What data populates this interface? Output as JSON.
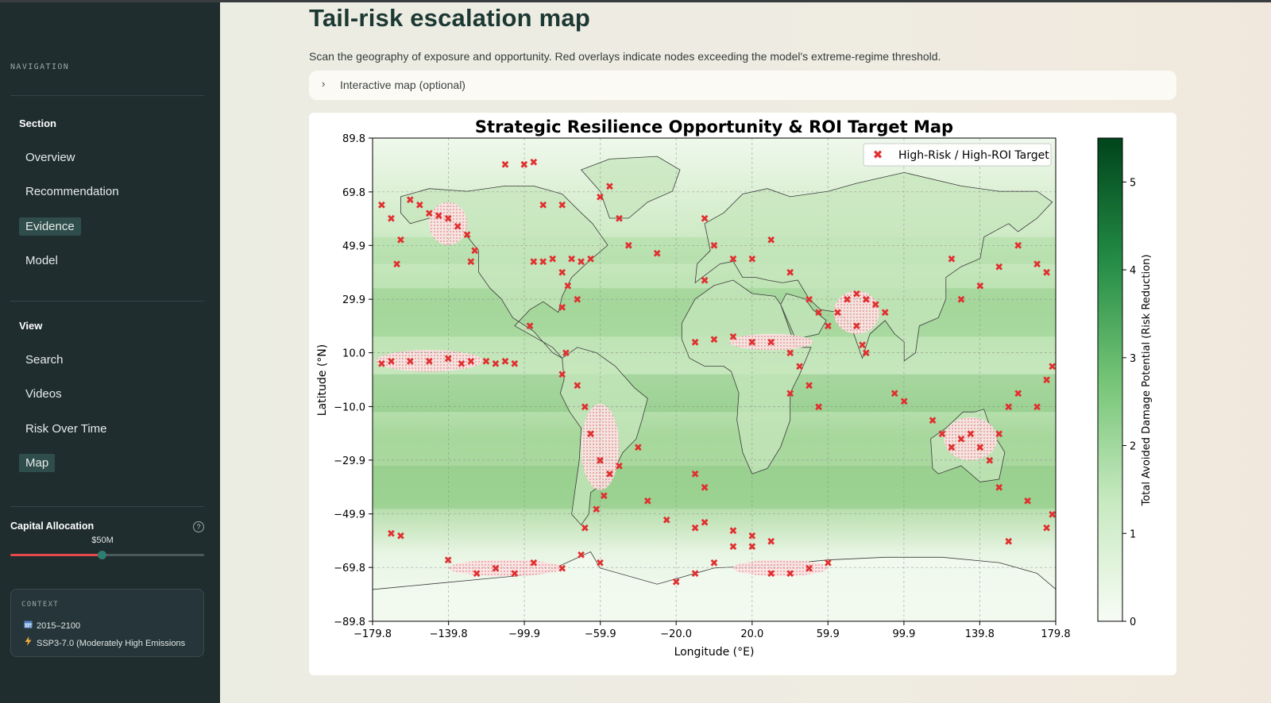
{
  "sidebar": {
    "nav_caption": "NAVIGATION",
    "section_title": "Section",
    "section_items": [
      {
        "label": "Overview",
        "active": false
      },
      {
        "label": "Recommendation",
        "active": false
      },
      {
        "label": "Evidence",
        "active": true
      },
      {
        "label": "Model",
        "active": false
      }
    ],
    "view_title": "View",
    "view_items": [
      {
        "label": "Search",
        "active": false
      },
      {
        "label": "Videos",
        "active": false
      },
      {
        "label": "Risk Over Time",
        "active": false
      },
      {
        "label": "Map",
        "active": true
      }
    ],
    "capital": {
      "title": "Capital Allocation",
      "value_label": "$50M",
      "slider_fraction": 0.47
    },
    "context": {
      "caption": "CONTEXT",
      "period": "2015–2100",
      "scenario": "SSP3-7.0 (Moderately High Emissions"
    }
  },
  "main": {
    "title": "Tail-risk escalation map",
    "description": "Scan the geography of exposure and opportunity. Red overlays indicate nodes exceeding the model's extreme-regime threshold.",
    "expander_label": "Interactive map (optional)"
  },
  "colors": {
    "sidebar_bg": "#1f2d2f",
    "accent_green": "#2f4d4b",
    "slider_red": "#e5484d",
    "marker_red": "#d62728",
    "map_dark": "#00441b",
    "map_light": "#f7fcf5"
  },
  "chart_data": {
    "type": "scatter",
    "title": "Strategic Resilience Opportunity & ROI Target Map",
    "xlabel": "Longitude (°E)",
    "ylabel": "Latitude (°N)",
    "xlim": [
      -179.8,
      179.8
    ],
    "ylim": [
      -89.8,
      89.8
    ],
    "xticks": [
      "−179.8",
      "−139.8",
      "−99.9",
      "−59.9",
      "−20.0",
      "20.0",
      "59.9",
      "99.9",
      "139.8",
      "179.8"
    ],
    "yticks": [
      "89.8",
      "69.8",
      "49.9",
      "29.9",
      "10.0",
      "−10.0",
      "−29.9",
      "−49.9",
      "−69.8",
      "−89.8"
    ],
    "grid": true,
    "legend": {
      "label": "High-Risk / High-ROI Target",
      "placement": "top-right"
    },
    "colorbar": {
      "label": "Total Avoided Damage Potential (Risk Reduction)",
      "ticks": [
        "0",
        "1",
        "2",
        "3",
        "4",
        "5"
      ],
      "max": 5.5,
      "colormap": "Greens"
    },
    "series": [
      {
        "name": "High-Risk / High-ROI Target",
        "points": [
          [
            -175,
            65
          ],
          [
            -170,
            60
          ],
          [
            -165,
            52
          ],
          [
            -167,
            43
          ],
          [
            -160,
            67
          ],
          [
            -155,
            65
          ],
          [
            -150,
            62
          ],
          [
            -145,
            61
          ],
          [
            -140,
            60
          ],
          [
            -135,
            57
          ],
          [
            -130,
            54
          ],
          [
            -126,
            48
          ],
          [
            -128,
            44
          ],
          [
            -175,
            6
          ],
          [
            -170,
            7
          ],
          [
            -160,
            7
          ],
          [
            -150,
            7
          ],
          [
            -140,
            8
          ],
          [
            -133,
            6
          ],
          [
            -128,
            7
          ],
          [
            -120,
            7
          ],
          [
            -115,
            6
          ],
          [
            -110,
            7
          ],
          [
            -105,
            6
          ],
          [
            -95,
            44
          ],
          [
            -90,
            44
          ],
          [
            -85,
            45
          ],
          [
            -80,
            40
          ],
          [
            -75,
            45
          ],
          [
            -70,
            44
          ],
          [
            -65,
            45
          ],
          [
            -72,
            30
          ],
          [
            -77,
            35
          ],
          [
            -80,
            27
          ],
          [
            -97,
            20
          ],
          [
            -110,
            80
          ],
          [
            -100,
            80
          ],
          [
            -95,
            81
          ],
          [
            -90,
            65
          ],
          [
            -80,
            65
          ],
          [
            -60,
            68
          ],
          [
            -55,
            72
          ],
          [
            -50,
            60
          ],
          [
            -45,
            50
          ],
          [
            -30,
            47
          ],
          [
            -5,
            37
          ],
          [
            -78,
            10
          ],
          [
            -80,
            2
          ],
          [
            -72,
            -2
          ],
          [
            -68,
            -10
          ],
          [
            -65,
            -20
          ],
          [
            -60,
            -30
          ],
          [
            -55,
            -35
          ],
          [
            -58,
            -43
          ],
          [
            -62,
            -48
          ],
          [
            -68,
            -55
          ],
          [
            -50,
            -32
          ],
          [
            -40,
            -25
          ],
          [
            -35,
            -45
          ],
          [
            -25,
            -52
          ],
          [
            -10,
            -35
          ],
          [
            -5,
            -40
          ],
          [
            -170,
            -57
          ],
          [
            -165,
            -58
          ],
          [
            -140,
            -67
          ],
          [
            -125,
            -72
          ],
          [
            -115,
            -70
          ],
          [
            -105,
            -72
          ],
          [
            -95,
            -68
          ],
          [
            -80,
            -70
          ],
          [
            -70,
            -65
          ],
          [
            -60,
            -68
          ],
          [
            -20,
            -75
          ],
          [
            -10,
            -72
          ],
          [
            0,
            -68
          ],
          [
            10,
            -62
          ],
          [
            20,
            -62
          ],
          [
            30,
            -72
          ],
          [
            40,
            -72
          ],
          [
            50,
            -70
          ],
          [
            60,
            -68
          ],
          [
            -10,
            -55
          ],
          [
            -5,
            -53
          ],
          [
            10,
            -56
          ],
          [
            20,
            -58
          ],
          [
            30,
            -60
          ],
          [
            -10,
            14
          ],
          [
            0,
            15
          ],
          [
            10,
            16
          ],
          [
            20,
            14
          ],
          [
            30,
            14
          ],
          [
            40,
            10
          ],
          [
            45,
            5
          ],
          [
            40,
            -5
          ],
          [
            50,
            -2
          ],
          [
            55,
            -10
          ],
          [
            -5,
            60
          ],
          [
            0,
            50
          ],
          [
            10,
            45
          ],
          [
            20,
            45
          ],
          [
            30,
            52
          ],
          [
            40,
            40
          ],
          [
            50,
            30
          ],
          [
            55,
            25
          ],
          [
            60,
            20
          ],
          [
            65,
            25
          ],
          [
            70,
            30
          ],
          [
            75,
            32
          ],
          [
            80,
            30
          ],
          [
            85,
            28
          ],
          [
            90,
            25
          ],
          [
            75,
            20
          ],
          [
            78,
            13
          ],
          [
            80,
            10
          ],
          [
            95,
            -5
          ],
          [
            100,
            -8
          ],
          [
            115,
            -15
          ],
          [
            120,
            -20
          ],
          [
            125,
            -25
          ],
          [
            130,
            -22
          ],
          [
            135,
            -20
          ],
          [
            140,
            -25
          ],
          [
            145,
            -30
          ],
          [
            150,
            -20
          ],
          [
            155,
            -10
          ],
          [
            160,
            -5
          ],
          [
            150,
            -40
          ],
          [
            155,
            -60
          ],
          [
            165,
            -45
          ],
          [
            125,
            45
          ],
          [
            130,
            30
          ],
          [
            140,
            35
          ],
          [
            150,
            42
          ],
          [
            160,
            50
          ],
          [
            170,
            43
          ],
          [
            175,
            40
          ],
          [
            170,
            -10
          ],
          [
            175,
            0
          ],
          [
            178,
            5
          ],
          [
            178,
            -50
          ],
          [
            175,
            -55
          ]
        ]
      }
    ]
  }
}
